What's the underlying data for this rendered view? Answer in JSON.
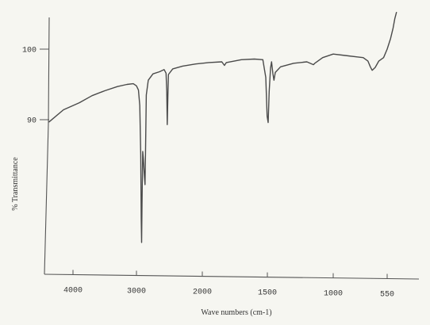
{
  "chart_data": {
    "type": "line",
    "title": "",
    "xlabel": "Wave numbers (cm-1)",
    "ylabel": "% Transmittance",
    "x_reversed": true,
    "xlim": [
      4250,
      400
    ],
    "ylim": [
      72,
      105
    ],
    "x_ticks": [
      {
        "value": 4000,
        "label": "4000"
      },
      {
        "value": 3000,
        "label": "3000"
      },
      {
        "value": 2000,
        "label": "2000"
      },
      {
        "value": 1500,
        "label": "1500"
      },
      {
        "value": 1000,
        "label": "1000"
      },
      {
        "value": 550,
        "label": "550"
      }
    ],
    "y_ticks": [
      {
        "value": 100,
        "label": "100"
      },
      {
        "value": 90,
        "label": "90"
      }
    ],
    "grid": false,
    "series": [
      {
        "color": "#4a4a4a",
        "points": [
          [
            4250,
            89.7
          ],
          [
            4100,
            91.4
          ],
          [
            3900,
            92.4
          ],
          [
            3700,
            93.4
          ],
          [
            3500,
            94.1
          ],
          [
            3300,
            94.7
          ],
          [
            3150,
            95.0
          ],
          [
            3050,
            95.1
          ],
          [
            3000,
            94.8
          ],
          [
            2970,
            94.2
          ],
          [
            2950,
            92.0
          ],
          [
            2935,
            85.0
          ],
          [
            2928,
            76.0
          ],
          [
            2922,
            72.6
          ],
          [
            2916,
            78.0
          ],
          [
            2905,
            85.5
          ],
          [
            2895,
            84.5
          ],
          [
            2880,
            82.0
          ],
          [
            2870,
            80.8
          ],
          [
            2862,
            86.0
          ],
          [
            2850,
            93.5
          ],
          [
            2820,
            95.6
          ],
          [
            2750,
            96.5
          ],
          [
            2650,
            96.8
          ],
          [
            2580,
            97.1
          ],
          [
            2550,
            96.6
          ],
          [
            2540,
            94.0
          ],
          [
            2532,
            89.3
          ],
          [
            2522,
            93.8
          ],
          [
            2515,
            96.4
          ],
          [
            2450,
            97.2
          ],
          [
            2300,
            97.6
          ],
          [
            2100,
            97.9
          ],
          [
            1950,
            98.1
          ],
          [
            1850,
            98.2
          ],
          [
            1830,
            97.7
          ],
          [
            1815,
            98.1
          ],
          [
            1700,
            98.5
          ],
          [
            1600,
            98.6
          ],
          [
            1535,
            98.5
          ],
          [
            1512,
            96.0
          ],
          [
            1502,
            90.5
          ],
          [
            1494,
            89.6
          ],
          [
            1486,
            94.0
          ],
          [
            1476,
            97.3
          ],
          [
            1468,
            98.2
          ],
          [
            1458,
            96.5
          ],
          [
            1450,
            95.6
          ],
          [
            1440,
            96.7
          ],
          [
            1400,
            97.5
          ],
          [
            1300,
            98.0
          ],
          [
            1200,
            98.2
          ],
          [
            1150,
            97.8
          ],
          [
            1140,
            98.0
          ],
          [
            1080,
            98.8
          ],
          [
            1000,
            99.3
          ],
          [
            900,
            99.1
          ],
          [
            800,
            98.9
          ],
          [
            750,
            98.8
          ],
          [
            710,
            98.3
          ],
          [
            690,
            97.5
          ],
          [
            675,
            97.0
          ],
          [
            650,
            97.4
          ],
          [
            620,
            98.3
          ],
          [
            580,
            98.8
          ],
          [
            550,
            100.0
          ],
          [
            530,
            101.5
          ],
          [
            515,
            103.0
          ],
          [
            505,
            104.3
          ],
          [
            495,
            105.2
          ]
        ]
      }
    ]
  }
}
